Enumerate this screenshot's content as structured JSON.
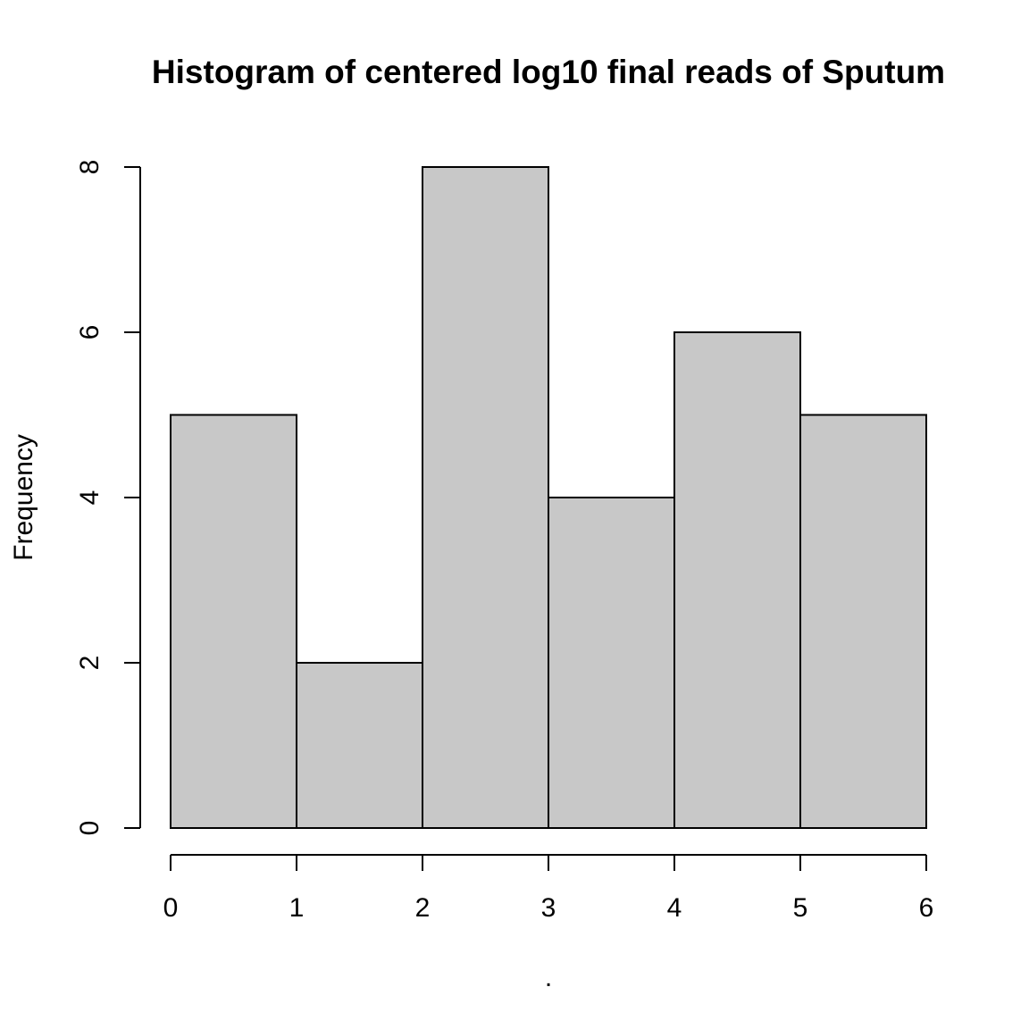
{
  "chart_data": {
    "type": "bar",
    "title": "Histogram of centered log10 final reads of Sputum",
    "xlabel": ".",
    "ylabel": "Frequency",
    "bins": [
      {
        "from": 0,
        "to": 1,
        "count": 5
      },
      {
        "from": 1,
        "to": 2,
        "count": 2
      },
      {
        "from": 2,
        "to": 3,
        "count": 8
      },
      {
        "from": 3,
        "to": 4,
        "count": 4
      },
      {
        "from": 4,
        "to": 5,
        "count": 6
      },
      {
        "from": 5,
        "to": 6,
        "count": 5
      }
    ],
    "xlim": [
      0,
      6
    ],
    "ylim": [
      0,
      8
    ],
    "xticks": [
      "0",
      "1",
      "2",
      "3",
      "4",
      "5",
      "6"
    ],
    "yticks": [
      "0",
      "2",
      "4",
      "6",
      "8"
    ],
    "bar_fill": "#c8c8c8",
    "bar_stroke": "#000000",
    "grid": false
  }
}
